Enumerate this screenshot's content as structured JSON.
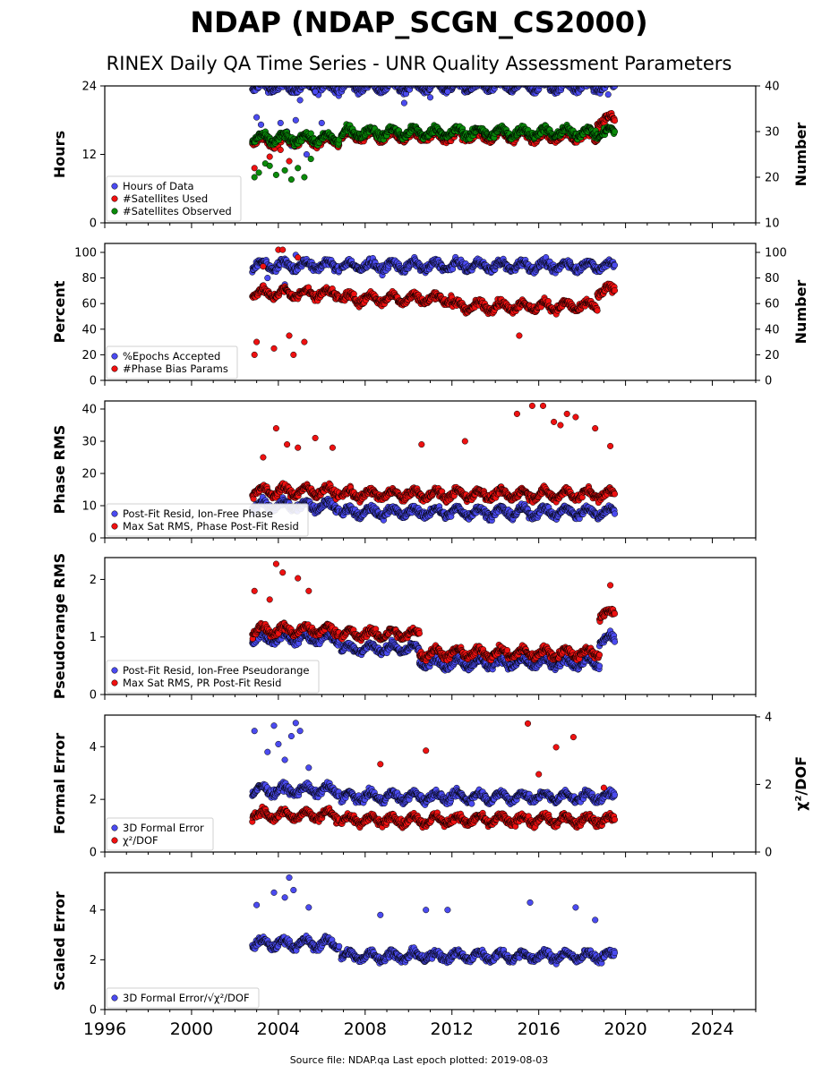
{
  "title": "NDAP (NDAP_SCGN_CS2000)",
  "subtitle": "RINEX Daily QA Time Series - UNR Quality Assessment Parameters",
  "footer": "Source file: NDAP.qa Last epoch plotted: 2019-08-03",
  "colors": {
    "blue": "#4b4bf0",
    "red": "#ee1111",
    "green": "#0a8a0a",
    "edge": "#000000"
  },
  "chart_data": [
    {
      "type": "scatter",
      "ylabel": "Hours",
      "ylabel_right": "Number",
      "xlim": [
        1996,
        2026
      ],
      "ylim": [
        0,
        24
      ],
      "ylim_right": [
        10,
        40
      ],
      "yticks": [
        "0",
        "12",
        "24"
      ],
      "yticks_right": [
        "10",
        "20",
        "30",
        "40"
      ],
      "legend_position": "lower-left",
      "series": [
        {
          "name": "Hours of Data",
          "color": "blue",
          "axis": "left",
          "segments": [
            [
              2002.8,
              2006.8,
              23.8
            ],
            [
              2006.9,
              2019.5,
              23.9
            ]
          ],
          "outliers": [
            [
              2003.0,
              18.5
            ],
            [
              2003.2,
              17.2
            ],
            [
              2003.5,
              14.0
            ],
            [
              2003.8,
              13.0
            ],
            [
              2004.1,
              17.5
            ],
            [
              2004.4,
              16.0
            ],
            [
              2004.6,
              13.5
            ],
            [
              2004.8,
              18.0
            ],
            [
              2005.0,
              21.5
            ],
            [
              2005.3,
              12.0
            ],
            [
              2005.7,
              23.0
            ],
            [
              2006.0,
              17.5
            ],
            [
              2009.8,
              21.0
            ],
            [
              2011.0,
              22.0
            ],
            [
              2011.8,
              23.0
            ],
            [
              2019.2,
              22.5
            ]
          ]
        },
        {
          "name": "#Satellites Used",
          "color": "red",
          "axis": "right",
          "segments": [
            [
              2002.8,
              2006.8,
              28.0
            ],
            [
              2006.9,
              2018.7,
              29.0
            ],
            [
              2018.7,
              2019.5,
              32.5
            ]
          ],
          "outliers": [
            [
              2002.9,
              22.0
            ],
            [
              2003.6,
              24.5
            ],
            [
              2004.1,
              26.0
            ],
            [
              2004.5,
              23.5
            ]
          ]
        },
        {
          "name": "#Satellites Observed",
          "color": "green",
          "axis": "right",
          "segments": [
            [
              2002.8,
              2006.8,
              28.5
            ],
            [
              2006.9,
              2019.5,
              29.8
            ]
          ],
          "outliers": [
            [
              2002.9,
              20.0
            ],
            [
              2003.1,
              21.0
            ],
            [
              2003.4,
              23.0
            ],
            [
              2003.6,
              22.5
            ],
            [
              2003.9,
              20.5
            ],
            [
              2004.3,
              21.5
            ],
            [
              2004.6,
              19.5
            ],
            [
              2004.9,
              22.0
            ],
            [
              2005.2,
              20.0
            ],
            [
              2005.5,
              24.0
            ]
          ]
        }
      ]
    },
    {
      "type": "scatter",
      "ylabel": "Percent",
      "ylabel_right": "Number",
      "xlim": [
        1996,
        2026
      ],
      "ylim": [
        0,
        107
      ],
      "ylim_right": [
        0,
        107
      ],
      "yticks": [
        "0",
        "20",
        "40",
        "60",
        "80",
        "100"
      ],
      "yticks_right": [
        "0",
        "20",
        "40",
        "60",
        "80",
        "100"
      ],
      "legend_position": "lower-left",
      "series": [
        {
          "name": "%Epochs Accepted",
          "color": "blue",
          "axis": "left",
          "segments": [
            [
              2002.8,
              2006.8,
              90.0
            ],
            [
              2006.9,
              2019.5,
              89.5
            ]
          ],
          "outliers": [
            [
              2003.5,
              80.0
            ],
            [
              2004.3,
              75.0
            ],
            [
              2004.8,
              98.0
            ]
          ]
        },
        {
          "name": "#Phase Bias Params",
          "color": "red",
          "axis": "right",
          "segments": [
            [
              2002.8,
              2006.8,
              68.0
            ],
            [
              2006.9,
              2012.0,
              64.0
            ],
            [
              2012.0,
              2018.7,
              58.0
            ],
            [
              2018.7,
              2019.5,
              70.0
            ]
          ],
          "outliers": [
            [
              2002.9,
              20.0
            ],
            [
              2003.0,
              30.0
            ],
            [
              2003.3,
              89.0
            ],
            [
              2003.8,
              25.0
            ],
            [
              2004.0,
              102.0
            ],
            [
              2004.2,
              102.0
            ],
            [
              2004.5,
              35.0
            ],
            [
              2004.7,
              20.0
            ],
            [
              2004.9,
              96.0
            ],
            [
              2005.2,
              30.0
            ],
            [
              2015.1,
              35.0
            ]
          ]
        }
      ]
    },
    {
      "type": "scatter",
      "ylabel": "Phase RMS",
      "xlim": [
        1996,
        2026
      ],
      "ylim": [
        0,
        42.5
      ],
      "yticks": [
        "0",
        "10",
        "20",
        "30",
        "40"
      ],
      "legend_position": "lower-left",
      "series": [
        {
          "name": "Post-Fit Resid, Ion-Free Phase",
          "color": "blue",
          "axis": "left",
          "segments": [
            [
              2002.8,
              2006.8,
              10.0
            ],
            [
              2006.9,
              2019.5,
              8.0
            ]
          ],
          "outliers": []
        },
        {
          "name": "Max Sat RMS, Phase Post-Fit Resid",
          "color": "red",
          "axis": "left",
          "segments": [
            [
              2002.8,
              2006.8,
              14.5
            ],
            [
              2006.9,
              2019.5,
              13.5
            ]
          ],
          "outliers": [
            [
              2003.3,
              25.0
            ],
            [
              2003.9,
              34.0
            ],
            [
              2004.4,
              29.0
            ],
            [
              2004.9,
              28.0
            ],
            [
              2005.7,
              31.0
            ],
            [
              2006.5,
              28.0
            ],
            [
              2010.6,
              29.0
            ],
            [
              2012.6,
              30.0
            ],
            [
              2015.0,
              38.5
            ],
            [
              2015.7,
              41.0
            ],
            [
              2016.2,
              41.0
            ],
            [
              2016.7,
              36.0
            ],
            [
              2017.0,
              35.0
            ],
            [
              2017.3,
              38.5
            ],
            [
              2017.7,
              37.5
            ],
            [
              2018.6,
              34.0
            ],
            [
              2019.3,
              28.5
            ]
          ]
        }
      ]
    },
    {
      "type": "scatter",
      "ylabel": "Pseudorange RMS",
      "xlim": [
        1996,
        2026
      ],
      "ylim": [
        0,
        2.38
      ],
      "yticks": [
        "0",
        "1",
        "2"
      ],
      "legend_position": "lower-left",
      "series": [
        {
          "name": "Post-Fit Resid, Ion-Free Pseudorange",
          "color": "blue",
          "axis": "left",
          "segments": [
            [
              2002.8,
              2006.8,
              0.98
            ],
            [
              2006.9,
              2010.5,
              0.8
            ],
            [
              2010.5,
              2018.8,
              0.55
            ],
            [
              2018.8,
              2019.5,
              0.95
            ]
          ],
          "outliers": []
        },
        {
          "name": "Max Sat RMS, PR Post-Fit Resid",
          "color": "red",
          "axis": "left",
          "segments": [
            [
              2002.8,
              2006.8,
              1.12
            ],
            [
              2006.9,
              2010.5,
              1.05
            ],
            [
              2010.5,
              2018.8,
              0.72
            ],
            [
              2018.8,
              2019.5,
              1.4
            ]
          ],
          "outliers": [
            [
              2002.9,
              1.8
            ],
            [
              2003.6,
              1.65
            ],
            [
              2003.9,
              2.27
            ],
            [
              2004.2,
              2.12
            ],
            [
              2004.9,
              2.02
            ],
            [
              2005.4,
              1.8
            ],
            [
              2019.3,
              1.9
            ]
          ]
        }
      ]
    },
    {
      "type": "scatter",
      "ylabel": "Formal Error",
      "ylabel_right": "χ²/DOF",
      "xlim": [
        1996,
        2026
      ],
      "ylim": [
        0,
        5.2
      ],
      "ylim_right": [
        0,
        4.05
      ],
      "yticks": [
        "0",
        "2",
        "4"
      ],
      "yticks_right": [
        "0",
        "2",
        "4"
      ],
      "legend_position": "lower-left",
      "series": [
        {
          "name": "3D Formal Error",
          "color": "blue",
          "axis": "left",
          "segments": [
            [
              2002.8,
              2006.8,
              2.35
            ],
            [
              2006.9,
              2019.5,
              2.1
            ]
          ],
          "outliers": [
            [
              2002.9,
              4.6
            ],
            [
              2003.5,
              3.8
            ],
            [
              2003.8,
              4.8
            ],
            [
              2004.0,
              4.1
            ],
            [
              2004.3,
              3.5
            ],
            [
              2004.6,
              4.4
            ],
            [
              2004.8,
              4.9
            ],
            [
              2005.0,
              4.6
            ],
            [
              2005.4,
              3.2
            ]
          ]
        },
        {
          "name": "χ²/DOF",
          "color": "red",
          "axis": "right",
          "segments": [
            [
              2002.8,
              2006.8,
              1.1
            ],
            [
              2006.9,
              2019.5,
              0.95
            ]
          ],
          "outliers": [
            [
              2008.7,
              2.6
            ],
            [
              2010.8,
              3.0
            ],
            [
              2015.5,
              3.8
            ],
            [
              2016.0,
              2.3
            ],
            [
              2016.8,
              3.1
            ],
            [
              2017.6,
              3.4
            ],
            [
              2019.0,
              1.9
            ]
          ]
        }
      ]
    },
    {
      "type": "scatter",
      "ylabel": "Scaled Error",
      "xlim": [
        1996,
        2026
      ],
      "ylim": [
        0,
        5.5
      ],
      "yticks": [
        "0",
        "2",
        "4"
      ],
      "xticks": [
        "1996",
        "2000",
        "2004",
        "2008",
        "2012",
        "2016",
        "2020",
        "2024"
      ],
      "legend_position": "lower-left",
      "series": [
        {
          "name": "3D Formal Error/√χ²/DOF",
          "color": "blue",
          "axis": "left",
          "segments": [
            [
              2002.8,
              2006.8,
              2.65
            ],
            [
              2006.9,
              2019.5,
              2.15
            ]
          ],
          "outliers": [
            [
              2003.0,
              4.2
            ],
            [
              2003.8,
              4.7
            ],
            [
              2004.3,
              4.5
            ],
            [
              2004.5,
              5.3
            ],
            [
              2004.7,
              4.8
            ],
            [
              2005.4,
              4.1
            ],
            [
              2008.7,
              3.8
            ],
            [
              2010.8,
              4.0
            ],
            [
              2011.8,
              4.0
            ],
            [
              2015.6,
              4.3
            ],
            [
              2017.7,
              4.1
            ],
            [
              2018.6,
              3.6
            ]
          ]
        }
      ]
    }
  ]
}
